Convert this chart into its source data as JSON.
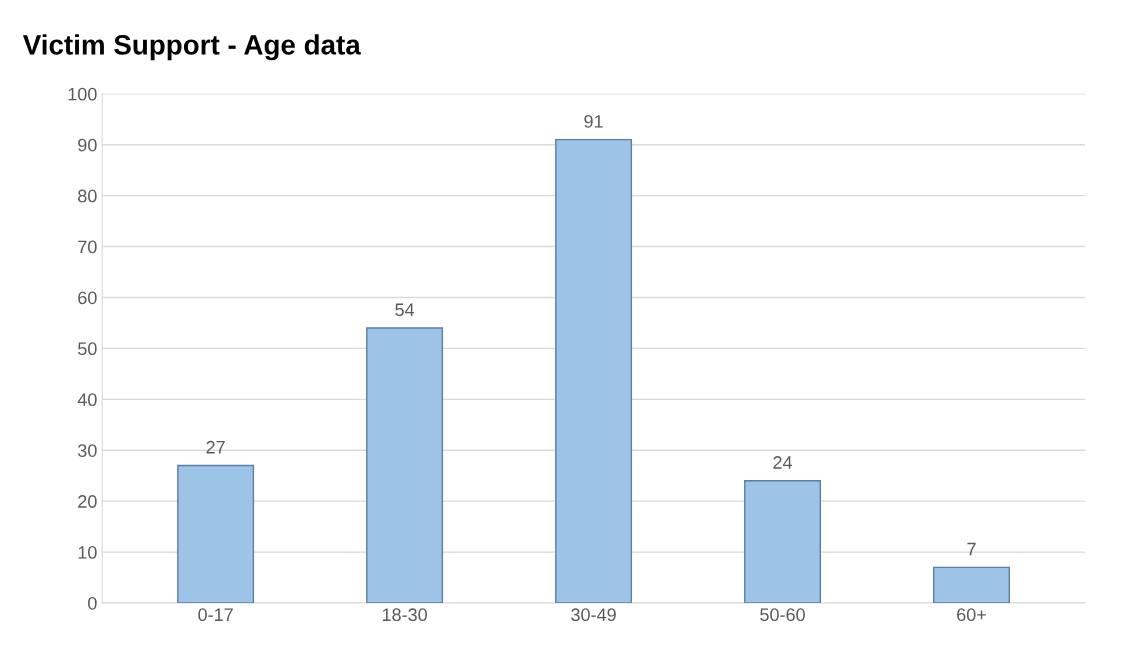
{
  "chart_data": {
    "type": "bar",
    "title": "Victim Support - Age data",
    "categories": [
      "0-17",
      "18-30",
      "30-49",
      "50-60",
      "60+"
    ],
    "values": [
      27,
      54,
      91,
      24,
      7
    ],
    "color": "#9dc3e6",
    "ylim": [
      0,
      100
    ],
    "yticks": [
      0,
      10,
      20,
      30,
      40,
      50,
      60,
      70,
      80,
      90,
      100
    ],
    "grid": "y",
    "data_labels": true
  }
}
